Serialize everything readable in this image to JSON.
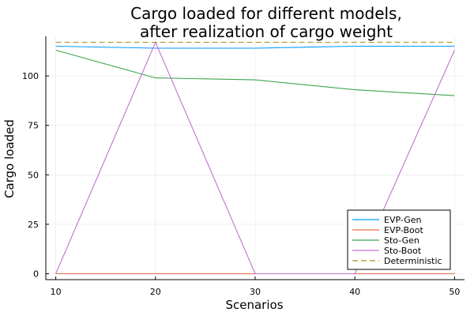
{
  "chart_data": {
    "type": "line",
    "title": [
      "Cargo loaded for different models,",
      "after realization of cargo weight"
    ],
    "xlabel": "Scenarios",
    "ylabel": "Cargo loaded",
    "x": [
      10,
      20,
      30,
      40,
      50
    ],
    "xticks": [
      10,
      20,
      30,
      40,
      50
    ],
    "yticks": [
      0,
      25,
      50,
      75,
      100
    ],
    "xlim": [
      9,
      51
    ],
    "ylim": [
      -3,
      120
    ],
    "grid": true,
    "legend_position": "bottom-right",
    "series": [
      {
        "name": "EVP-Gen",
        "color": "#009AFA",
        "dash": false,
        "values": [
          115,
          114,
          114,
          115,
          115
        ]
      },
      {
        "name": "EVP-Boot",
        "color": "#E36F47",
        "dash": false,
        "values": [
          0,
          0,
          0,
          0,
          0
        ]
      },
      {
        "name": "Sto-Gen",
        "color": "#3EA44E",
        "dash": false,
        "values": [
          113,
          99,
          98,
          93,
          90
        ]
      },
      {
        "name": "Sto-Boot",
        "color": "#C371D2",
        "dash": false,
        "values": [
          0,
          117,
          0,
          0,
          113
        ]
      },
      {
        "name": "Deterministic",
        "color": "#AC8E18",
        "dash": true,
        "values": [
          117,
          117,
          117,
          117,
          117
        ]
      }
    ]
  }
}
